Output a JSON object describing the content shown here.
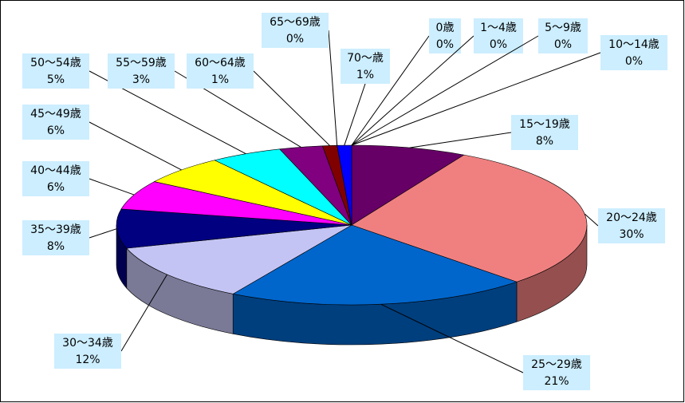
{
  "chart_data": {
    "type": "pie3d",
    "categories": [
      "0歳",
      "1～4歳",
      "5～9歳",
      "10～14歳",
      "15～19歳",
      "20～24歳",
      "25～29歳",
      "30～34歳",
      "35～39歳",
      "40～44歳",
      "45～49歳",
      "50～54歳",
      "55～59歳",
      "60～64歳",
      "65～69歳",
      "70～歳"
    ],
    "values": [
      0,
      0,
      0,
      0,
      8,
      30,
      21,
      12,
      8,
      6,
      6,
      5,
      3,
      1,
      0,
      1
    ],
    "value_labels": [
      "0%",
      "0%",
      "0%",
      "0%",
      "8%",
      "30%",
      "21%",
      "12%",
      "8%",
      "6%",
      "6%",
      "5%",
      "3%",
      "1%",
      "0%",
      "1%"
    ],
    "colors": [
      "#9999ff",
      "#993366",
      "#ffffcc",
      "#ccffff",
      "#660066",
      "#f08080",
      "#0066cc",
      "#c4c4f4",
      "#000080",
      "#ff00ff",
      "#ffff00",
      "#00ffff",
      "#800080",
      "#800000",
      "#008080",
      "#0000ff"
    ]
  }
}
